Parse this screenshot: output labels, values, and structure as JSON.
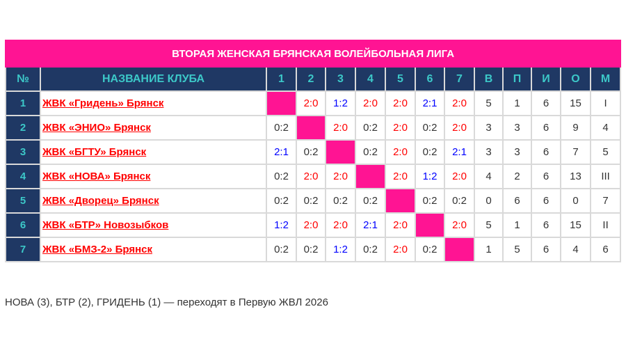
{
  "title": "ВТОРАЯ ЖЕНСКАЯ БРЯНСКАЯ ВОЛЕЙБОЛЬНАЯ ЛИГА",
  "headers": [
    "№",
    "НАЗВАНИЕ КЛУБА",
    "1",
    "2",
    "3",
    "4",
    "5",
    "6",
    "7",
    "В",
    "П",
    "И",
    "О",
    "М"
  ],
  "colors": {
    "accent": "#ff1493",
    "header_bg": "#1f3864",
    "header_text": "#3cc8c8",
    "win_2_0": "#ff0000",
    "close_result": "#0000ff",
    "loss_0_2": "#333333",
    "link": "#ff0000"
  },
  "rows": [
    {
      "num": "1",
      "name": "ЖВК «Гридень» Брянск",
      "scores": [
        null,
        "2:0",
        "1:2",
        "2:0",
        "2:0",
        "2:1",
        "2:0"
      ],
      "w": "5",
      "l": "1",
      "g": "6",
      "pts": "15",
      "place": "I"
    },
    {
      "num": "2",
      "name": "ЖВК «ЭНИО» Брянск",
      "scores": [
        "0:2",
        null,
        "2:0",
        "0:2",
        "2:0",
        "0:2",
        "2:0"
      ],
      "w": "3",
      "l": "3",
      "g": "6",
      "pts": "9",
      "place": "4"
    },
    {
      "num": "3",
      "name": "ЖВК «БГТУ» Брянск",
      "scores": [
        "2:1",
        "0:2",
        null,
        "0:2",
        "2:0",
        "0:2",
        "2:1"
      ],
      "w": "3",
      "l": "3",
      "g": "6",
      "pts": "7",
      "place": "5"
    },
    {
      "num": "4",
      "name": "ЖВК «НОВА» Брянск",
      "scores": [
        "0:2",
        "2:0",
        "2:0",
        null,
        "2:0",
        "1:2",
        "2:0"
      ],
      "w": "4",
      "l": "2",
      "g": "6",
      "pts": "13",
      "place": "III"
    },
    {
      "num": "5",
      "name": "ЖВК «Дворец» Брянск",
      "scores": [
        "0:2",
        "0:2",
        "0:2",
        "0:2",
        null,
        "0:2",
        "0:2"
      ],
      "w": "0",
      "l": "6",
      "g": "6",
      "pts": "0",
      "place": "7"
    },
    {
      "num": "6",
      "name": "ЖВК «БТР» Новозыбков",
      "scores": [
        "1:2",
        "2:0",
        "2:0",
        "2:1",
        "2:0",
        null,
        "2:0"
      ],
      "w": "5",
      "l": "1",
      "g": "6",
      "pts": "15",
      "place": "II"
    },
    {
      "num": "7",
      "name": "ЖВК «БМЗ-2» Брянск",
      "scores": [
        "0:2",
        "0:2",
        "1:2",
        "0:2",
        "2:0",
        "0:2",
        null
      ],
      "w": "1",
      "l": "5",
      "g": "6",
      "pts": "4",
      "place": "6"
    }
  ],
  "footnote": "НОВА (3), БТР (2), ГРИДЕНЬ (1) — переходят в Первую ЖВЛ 2026"
}
